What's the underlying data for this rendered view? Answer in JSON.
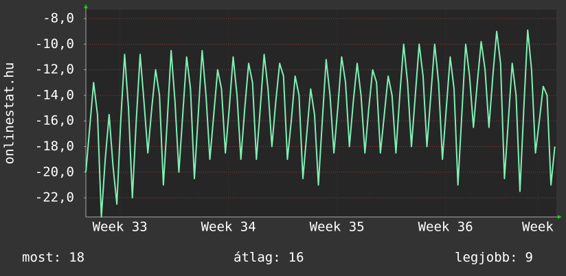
{
  "chart_data": {
    "type": "line",
    "ylabel": "onlinestat.hu",
    "x": [
      0,
      0.25,
      0.5,
      0.75,
      1,
      1.25,
      1.5,
      1.75,
      2,
      2.25,
      2.5,
      2.75,
      3,
      3.25,
      3.5,
      3.75,
      4,
      4.25,
      4.5,
      4.75,
      5,
      5.25,
      5.5,
      5.75,
      6,
      6.25,
      6.5,
      6.75,
      7,
      7.25,
      7.5,
      7.75,
      8,
      8.25,
      8.5,
      8.75,
      9,
      9.25,
      9.5,
      9.75,
      10,
      10.25,
      10.5,
      10.75,
      11,
      11.25,
      11.5,
      11.75,
      12,
      12.25,
      12.5,
      12.75,
      13,
      13.25,
      13.5,
      13.75,
      14,
      14.25,
      14.5,
      14.75,
      15,
      15.25,
      15.5,
      15.75,
      16,
      16.25,
      16.5,
      16.75,
      17,
      17.25,
      17.5,
      17.75,
      18,
      18.25,
      18.5,
      18.75,
      19,
      19.25,
      19.5,
      19.75,
      20,
      20.25,
      20.5,
      20.75,
      21,
      21.25,
      21.5,
      21.75,
      22,
      22.25,
      22.5,
      22.75,
      23,
      23.25,
      23.5,
      23.75,
      24,
      24.25,
      24.5,
      24.75,
      25,
      25.25,
      25.5,
      25.75,
      26,
      26.25,
      26.5,
      26.75,
      27,
      27.25,
      27.5,
      27.75,
      28,
      28.25,
      28.5,
      28.75,
      29,
      29.25,
      29.5,
      29.75,
      30,
      30.25
    ],
    "series": [
      {
        "color": "#7ff0b4",
        "values": [
          -20,
          -16.5,
          -13,
          -15.5,
          -23.5,
          -19,
          -15.5,
          -19.5,
          -22.5,
          -16,
          -10.8,
          -15,
          -22,
          -16,
          -10.8,
          -14.5,
          -18.5,
          -15,
          -12,
          -14,
          -21,
          -16,
          -10.5,
          -14.5,
          -20,
          -15.5,
          -11,
          -13.5,
          -20.5,
          -15.5,
          -10.5,
          -14,
          -19,
          -15.5,
          -12,
          -13.5,
          -18.5,
          -15,
          -11,
          -14,
          -19,
          -15,
          -11.5,
          -13,
          -19,
          -15,
          -10.8,
          -13.5,
          -18,
          -14.5,
          -11.5,
          -12.5,
          -19,
          -16,
          -12.5,
          -14,
          -20.5,
          -17,
          -13.5,
          -15.5,
          -21,
          -16,
          -11.2,
          -14,
          -18.5,
          -15,
          -11,
          -13,
          -18,
          -14.5,
          -11.5,
          -14,
          -18.5,
          -15,
          -12,
          -13,
          -18.5,
          -15.5,
          -12.5,
          -14,
          -18.5,
          -14,
          -10,
          -13,
          -18,
          -14,
          -10,
          -12.5,
          -18,
          -14,
          -10,
          -13,
          -19,
          -15,
          -11,
          -13.5,
          -21,
          -15.5,
          -10,
          -12.5,
          -16.5,
          -13,
          -9.8,
          -12,
          -16.5,
          -12.5,
          -9,
          -11.5,
          -20.5,
          -16,
          -11.5,
          -14,
          -21.5,
          -15,
          -8.9,
          -12,
          -18.5,
          -16,
          -13.3,
          -14,
          -21,
          -18
        ]
      }
    ],
    "xlim": [
      0,
      30.35
    ],
    "xticks": [
      {
        "value": 2.2,
        "label": "Week 33"
      },
      {
        "value": 9.2,
        "label": "Week 34"
      },
      {
        "value": 16.2,
        "label": "Week 35"
      },
      {
        "value": 23.2,
        "label": "Week 36"
      },
      {
        "value": 29.15,
        "label": "Week"
      }
    ],
    "ylim": [
      -23.5,
      -7.3
    ],
    "yticks": [
      {
        "value": -8,
        "label": "-8,0"
      },
      {
        "value": -10,
        "label": "-10,0"
      },
      {
        "value": -12,
        "label": "-12,0"
      },
      {
        "value": -14,
        "label": "-14,0"
      },
      {
        "value": -16,
        "label": "-16,0"
      },
      {
        "value": -18,
        "label": "-18,0"
      },
      {
        "value": -20,
        "label": "-20,0"
      },
      {
        "value": -22,
        "label": "-22,0"
      }
    ],
    "grid": true,
    "stats": [
      {
        "label": "most:",
        "value": 18
      },
      {
        "label": "átlag:",
        "value": 16
      },
      {
        "label": "legjobb:",
        "value": 9
      }
    ]
  }
}
